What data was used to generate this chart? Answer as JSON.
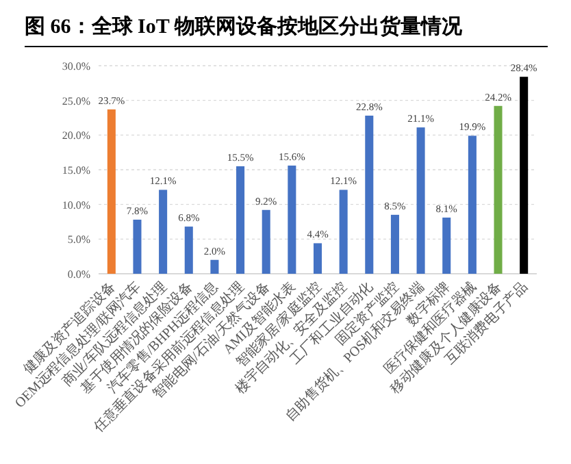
{
  "chart_data": {
    "type": "bar",
    "title": "图 66：全球 IoT 物联网设备按地区分出货量情况",
    "categories": [
      "健康及资产追踪设备",
      "OEM远程信息处理/联网汽车",
      "商业/车队远程信息处理",
      "基于使用情况的保险设备",
      "汽车零售/BHPH远程信息",
      "任意垂直设备采用前远程信息处理",
      "智能电网/石油/天然气设备",
      "AMI及智能水表",
      "智能家居/家庭监控",
      "楼宇自动化、安全及监控",
      "工厂和工业自动化",
      "固定资产监控",
      "自助售货机、POS机和交易终端",
      "数字标牌",
      "医疗保健和医疗器械",
      "移动健康及个人健康设备",
      "互联消费电子产品"
    ],
    "values": [
      23.7,
      7.8,
      12.1,
      6.8,
      2.0,
      15.5,
      9.2,
      15.6,
      4.4,
      12.1,
      22.8,
      8.5,
      21.1,
      8.1,
      19.9,
      24.2,
      28.4
    ],
    "value_labels": [
      "23.7%",
      "7.8%",
      "12.1%",
      "6.8%",
      "2.0%",
      "15.5%",
      "9.2%",
      "15.6%",
      "4.4%",
      "12.1%",
      "22.8%",
      "8.5%",
      "21.1%",
      "8.1%",
      "19.9%",
      "24.2%",
      "28.4%"
    ],
    "colors": [
      "#ed7d31",
      "#4472c4",
      "#4472c4",
      "#4472c4",
      "#4472c4",
      "#4472c4",
      "#4472c4",
      "#4472c4",
      "#4472c4",
      "#4472c4",
      "#4472c4",
      "#4472c4",
      "#4472c4",
      "#4472c4",
      "#4472c4",
      "#70ad47",
      "#000000"
    ],
    "ylim": [
      0,
      30
    ],
    "yticks": [
      {
        "value": 0,
        "label": "0.0%"
      },
      {
        "value": 5,
        "label": "5.0%"
      },
      {
        "value": 10,
        "label": "10.0%"
      },
      {
        "value": 15,
        "label": "15.0%"
      },
      {
        "value": 20,
        "label": "20.0%"
      },
      {
        "value": 25,
        "label": "25.0%"
      },
      {
        "value": 30,
        "label": "30.0%"
      }
    ],
    "grid": "y"
  }
}
